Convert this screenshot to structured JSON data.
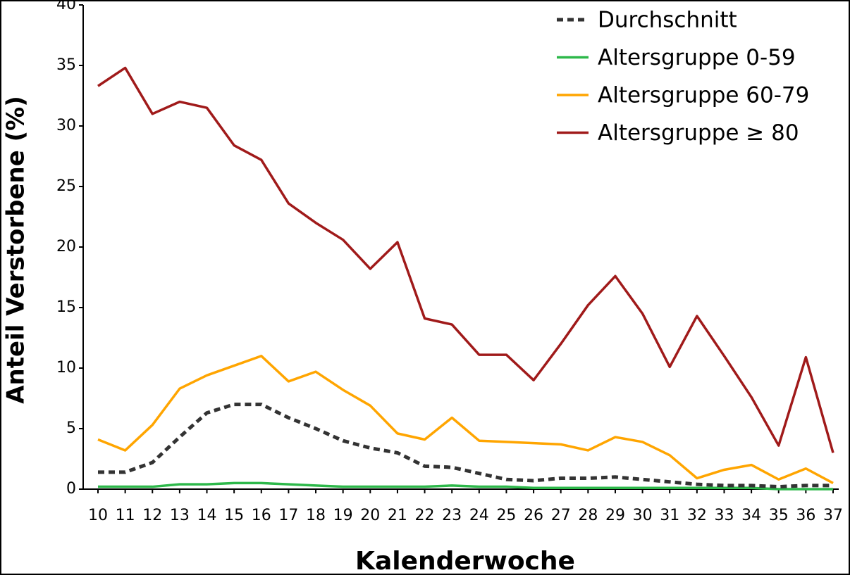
{
  "chart_data": {
    "type": "line",
    "x_label": "Kalenderwoche",
    "y_label": "Anteil Verstorbene (%)",
    "categories": [
      "10",
      "11",
      "12",
      "13",
      "14",
      "15",
      "16",
      "17",
      "18",
      "19",
      "20",
      "21",
      "22",
      "23",
      "24",
      "25",
      "26",
      "27",
      "28",
      "29",
      "30",
      "31",
      "32",
      "33",
      "34",
      "35",
      "36",
      "37"
    ],
    "series": [
      {
        "name": "Durchschnitt",
        "color": "#333333",
        "linestyle": "dashed",
        "values": [
          1.4,
          1.4,
          2.2,
          4.3,
          6.3,
          7.0,
          7.0,
          5.9,
          5.0,
          4.0,
          3.4,
          3.0,
          1.9,
          1.8,
          1.3,
          0.8,
          0.7,
          0.9,
          0.9,
          1.0,
          0.8,
          0.6,
          0.4,
          0.3,
          0.3,
          0.2,
          0.3,
          0.3
        ]
      },
      {
        "name": "Altersgruppe 0-59",
        "color": "#2db84a",
        "linestyle": "solid",
        "values": [
          0.2,
          0.2,
          0.2,
          0.4,
          0.4,
          0.5,
          0.5,
          0.4,
          0.3,
          0.2,
          0.2,
          0.2,
          0.2,
          0.3,
          0.2,
          0.2,
          0.1,
          0.1,
          0.1,
          0.1,
          0.1,
          0.1,
          0.1,
          0.1,
          0.1,
          0,
          0,
          0
        ]
      },
      {
        "name": "Altersgruppe 60-79",
        "color": "#ffa500",
        "linestyle": "solid",
        "values": [
          4.1,
          3.2,
          5.3,
          8.3,
          9.4,
          10.2,
          11.0,
          8.9,
          9.7,
          8.2,
          6.9,
          4.6,
          4.1,
          5.9,
          4.0,
          3.9,
          3.8,
          3.7,
          3.2,
          4.3,
          3.9,
          2.8,
          0.9,
          1.6,
          2.0,
          0.8,
          1.7,
          0.5
        ]
      },
      {
        "name": "Altersgruppe ≥ 80",
        "color": "#a01a1a",
        "linestyle": "solid",
        "values": [
          33.3,
          34.8,
          31.0,
          32.0,
          31.5,
          28.4,
          27.2,
          23.6,
          22.0,
          20.6,
          18.2,
          20.4,
          14.1,
          13.6,
          11.1,
          11.1,
          9.0,
          12.0,
          15.2,
          17.6,
          14.5,
          10.1,
          14.3,
          11.0,
          7.6,
          3.6,
          10.9,
          3.0
        ]
      }
    ],
    "ylim": [
      0,
      40
    ],
    "yticks": [
      0,
      5,
      10,
      15,
      20,
      25,
      30,
      35,
      40
    ],
    "grid": false,
    "legend": "upper right"
  }
}
